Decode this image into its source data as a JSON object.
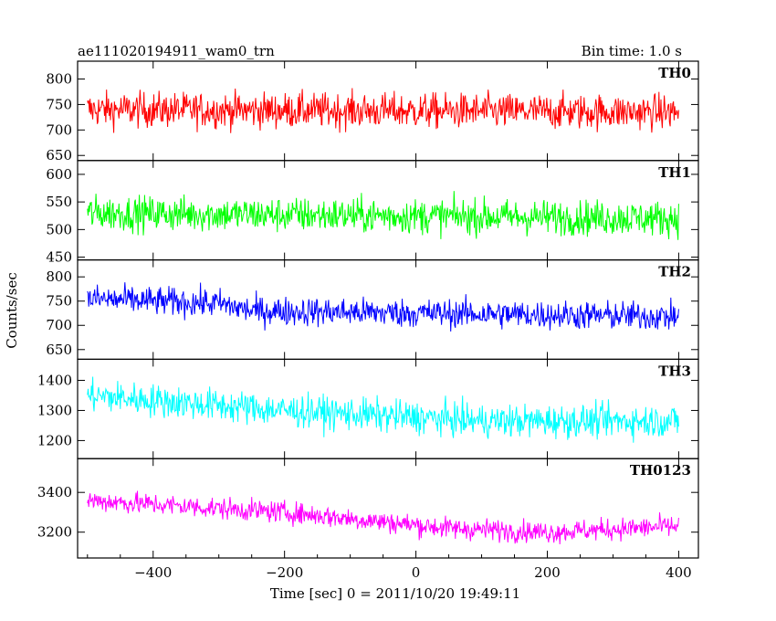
{
  "chart_data": {
    "type": "line",
    "title_left": "ae111020194911_wam0_trn",
    "title_right": "Bin time: 1.0 s",
    "xlabel": "Time [sec] 0 = 2011/10/20 19:49:11",
    "ylabel": "Counts/sec",
    "xlim": [
      -515,
      430
    ],
    "xticks": [
      -400,
      -200,
      0,
      200,
      400
    ],
    "x_range": [
      -500,
      400
    ],
    "bin_time": 1.0,
    "panels": [
      {
        "name": "TH0",
        "color": "#ff0000",
        "ylim": [
          640,
          835
        ],
        "yticks": [
          650,
          700,
          750,
          800
        ],
        "trend": [
          [
            -500,
            740
          ],
          [
            400,
            735
          ]
        ],
        "noise": 35
      },
      {
        "name": "TH1",
        "color": "#00ff00",
        "ylim": [
          445,
          625
        ],
        "yticks": [
          450,
          500,
          550,
          600
        ],
        "trend": [
          [
            -500,
            530
          ],
          [
            400,
            520
          ]
        ],
        "noise": 32
      },
      {
        "name": "TH2",
        "color": "#0000ff",
        "ylim": [
          630,
          835
        ],
        "yticks": [
          650,
          700,
          750,
          800
        ],
        "trend": [
          [
            -500,
            755
          ],
          [
            -300,
            745
          ],
          [
            -250,
            730
          ],
          [
            400,
            718
          ]
        ],
        "noise": 30
      },
      {
        "name": "TH3",
        "color": "#00ffff",
        "ylim": [
          1140,
          1470
        ],
        "yticks": [
          1200,
          1300,
          1400
        ],
        "trend": [
          [
            -500,
            1350
          ],
          [
            -200,
            1300
          ],
          [
            100,
            1265
          ],
          [
            400,
            1265
          ]
        ],
        "noise": 55
      },
      {
        "name": "TH0123",
        "color": "#ff00ff",
        "ylim": [
          3070,
          3570
        ],
        "yticks": [
          3200,
          3400
        ],
        "trend": [
          [
            -500,
            3360
          ],
          [
            -200,
            3300
          ],
          [
            50,
            3220
          ],
          [
            200,
            3200
          ],
          [
            400,
            3230
          ]
        ],
        "noise": 55
      }
    ]
  }
}
